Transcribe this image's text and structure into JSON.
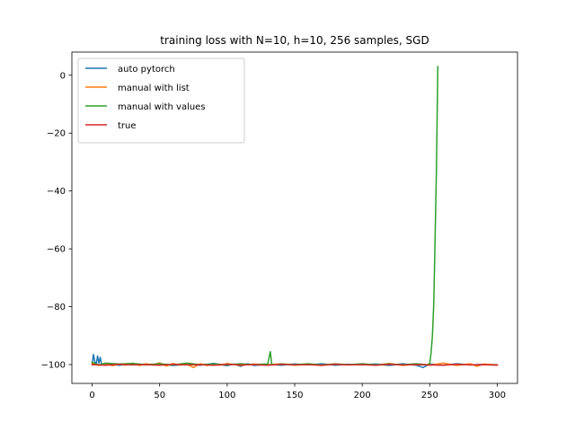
{
  "chart_data": {
    "type": "line",
    "title": "training loss with N=10, h=10, 256 samples, SGD",
    "xlabel": "",
    "ylabel": "",
    "xlim": [
      -15,
      315
    ],
    "ylim": [
      -106.5,
      8
    ],
    "xticks": [
      0,
      50,
      100,
      150,
      200,
      250,
      300
    ],
    "xtick_labels": [
      "0",
      "50",
      "100",
      "150",
      "200",
      "250",
      "300"
    ],
    "yticks": [
      0,
      -20,
      -40,
      -60,
      -80,
      -100
    ],
    "ytick_labels": [
      "0",
      "−20",
      "−40",
      "−60",
      "−80",
      "−100"
    ],
    "grid": false,
    "legend_position": "top-left",
    "series": [
      {
        "name": "auto pytorch",
        "color": "#1f77b4",
        "points": [
          [
            0,
            -100.0
          ],
          [
            1,
            -96.5
          ],
          [
            2,
            -99.0
          ],
          [
            3,
            -100.0
          ],
          [
            4,
            -97.0
          ],
          [
            5,
            -99.5
          ],
          [
            6,
            -97.5
          ],
          [
            7,
            -100.0
          ],
          [
            10,
            -99.8
          ],
          [
            20,
            -100.2
          ],
          [
            30,
            -99.7
          ],
          [
            40,
            -100.1
          ],
          [
            50,
            -99.8
          ],
          [
            60,
            -100.3
          ],
          [
            70,
            -99.9
          ],
          [
            80,
            -100.2
          ],
          [
            90,
            -99.6
          ],
          [
            100,
            -100.4
          ],
          [
            105,
            -99.8
          ],
          [
            110,
            -100.6
          ],
          [
            115,
            -99.7
          ],
          [
            120,
            -100.3
          ],
          [
            130,
            -99.9
          ],
          [
            140,
            -100.2
          ],
          [
            150,
            -99.8
          ],
          [
            160,
            -100.1
          ],
          [
            170,
            -99.7
          ],
          [
            180,
            -100.2
          ],
          [
            190,
            -99.9
          ],
          [
            200,
            -100.1
          ],
          [
            210,
            -99.8
          ],
          [
            220,
            -100.3
          ],
          [
            230,
            -99.7
          ],
          [
            240,
            -100.2
          ],
          [
            245,
            -101.0
          ],
          [
            250,
            -99.8
          ],
          [
            260,
            -100.2
          ],
          [
            270,
            -99.7
          ],
          [
            280,
            -100.1
          ],
          [
            290,
            -99.9
          ],
          [
            300,
            -100.0
          ]
        ]
      },
      {
        "name": "manual with list",
        "color": "#ff7f0e",
        "points": [
          [
            0,
            -99.5
          ],
          [
            5,
            -100.3
          ],
          [
            10,
            -99.6
          ],
          [
            15,
            -100.4
          ],
          [
            20,
            -99.8
          ],
          [
            25,
            -100.2
          ],
          [
            30,
            -99.5
          ],
          [
            35,
            -100.3
          ],
          [
            40,
            -99.7
          ],
          [
            45,
            -100.1
          ],
          [
            50,
            -99.4
          ],
          [
            55,
            -100.5
          ],
          [
            60,
            -99.6
          ],
          [
            65,
            -100.2
          ],
          [
            70,
            -99.8
          ],
          [
            75,
            -101.0
          ],
          [
            80,
            -99.7
          ],
          [
            85,
            -100.3
          ],
          [
            90,
            -99.9
          ],
          [
            95,
            -100.2
          ],
          [
            100,
            -99.6
          ],
          [
            110,
            -100.3
          ],
          [
            120,
            -99.8
          ],
          [
            130,
            -100.1
          ],
          [
            140,
            -99.7
          ],
          [
            150,
            -100.2
          ],
          [
            160,
            -99.9
          ],
          [
            170,
            -100.3
          ],
          [
            180,
            -99.7
          ],
          [
            190,
            -100.1
          ],
          [
            200,
            -99.8
          ],
          [
            210,
            -100.2
          ],
          [
            220,
            -99.6
          ],
          [
            230,
            -100.3
          ],
          [
            240,
            -99.8
          ],
          [
            250,
            -100.2
          ],
          [
            260,
            -99.5
          ],
          [
            270,
            -100.3
          ],
          [
            280,
            -99.7
          ],
          [
            285,
            -100.6
          ],
          [
            290,
            -99.8
          ],
          [
            300,
            -100.1
          ]
        ]
      },
      {
        "name": "manual with values",
        "color": "#2ca02c",
        "points": [
          [
            0,
            -99.2
          ],
          [
            5,
            -100.1
          ],
          [
            10,
            -99.5
          ],
          [
            20,
            -99.8
          ],
          [
            30,
            -99.6
          ],
          [
            40,
            -100.0
          ],
          [
            50,
            -99.7
          ],
          [
            60,
            -100.1
          ],
          [
            70,
            -99.5
          ],
          [
            80,
            -100.0
          ],
          [
            90,
            -99.8
          ],
          [
            100,
            -100.1
          ],
          [
            110,
            -99.7
          ],
          [
            120,
            -100.0
          ],
          [
            128,
            -99.8
          ],
          [
            130,
            -99.9
          ],
          [
            132,
            -95.5
          ],
          [
            133,
            -99.8
          ],
          [
            135,
            -100.1
          ],
          [
            140,
            -99.8
          ],
          [
            150,
            -100.0
          ],
          [
            160,
            -99.7
          ],
          [
            170,
            -100.1
          ],
          [
            180,
            -99.8
          ],
          [
            190,
            -100.0
          ],
          [
            200,
            -99.7
          ],
          [
            210,
            -100.1
          ],
          [
            220,
            -99.8
          ],
          [
            230,
            -100.0
          ],
          [
            240,
            -99.7
          ],
          [
            248,
            -100.0
          ],
          [
            250,
            -99.7
          ],
          [
            251,
            -96.0
          ],
          [
            252,
            -90.0
          ],
          [
            253,
            -79.0
          ],
          [
            254,
            -56.0
          ],
          [
            255,
            -32.0
          ],
          [
            256,
            3.0
          ]
        ]
      },
      {
        "name": "true",
        "color": "#d62728",
        "points": [
          [
            0,
            -100.0
          ],
          [
            10,
            -100.2
          ],
          [
            20,
            -99.9
          ],
          [
            30,
            -100.1
          ],
          [
            40,
            -100.0
          ],
          [
            50,
            -100.2
          ],
          [
            60,
            -99.9
          ],
          [
            70,
            -100.1
          ],
          [
            80,
            -100.0
          ],
          [
            90,
            -100.2
          ],
          [
            100,
            -99.9
          ],
          [
            110,
            -100.1
          ],
          [
            120,
            -100.0
          ],
          [
            130,
            -100.2
          ],
          [
            140,
            -99.9
          ],
          [
            150,
            -100.1
          ],
          [
            160,
            -100.0
          ],
          [
            170,
            -100.2
          ],
          [
            180,
            -99.9
          ],
          [
            190,
            -100.1
          ],
          [
            200,
            -100.0
          ],
          [
            210,
            -100.2
          ],
          [
            220,
            -99.9
          ],
          [
            230,
            -100.1
          ],
          [
            240,
            -100.0
          ],
          [
            250,
            -100.1
          ],
          [
            260,
            -100.2
          ],
          [
            270,
            -99.9
          ],
          [
            280,
            -100.1
          ],
          [
            290,
            -100.0
          ],
          [
            300,
            -100.2
          ]
        ]
      }
    ]
  }
}
